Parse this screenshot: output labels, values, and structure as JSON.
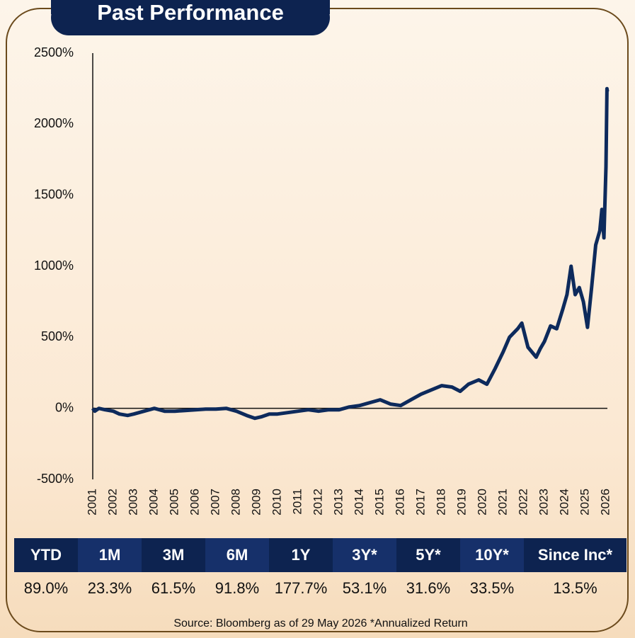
{
  "title": "Past Performance",
  "chart_data": {
    "type": "line",
    "x": [
      2001.0,
      2001.1,
      2001.3,
      2001.6,
      2002.0,
      2002.3,
      2002.7,
      2003.0,
      2003.5,
      2004.0,
      2004.5,
      2005.0,
      2005.5,
      2006.0,
      2006.5,
      2007.0,
      2007.5,
      2008.0,
      2008.5,
      2008.9,
      2009.2,
      2009.6,
      2010.0,
      2010.5,
      2011.0,
      2011.5,
      2012.0,
      2012.5,
      2013.0,
      2013.5,
      2014.0,
      2014.5,
      2015.0,
      2015.5,
      2016.0,
      2016.5,
      2017.0,
      2017.5,
      2018.0,
      2018.5,
      2018.9,
      2019.3,
      2019.8,
      2020.2,
      2020.6,
      2021.0,
      2021.3,
      2021.7,
      2021.9,
      2022.2,
      2022.6,
      2022.8,
      2023.0,
      2023.3,
      2023.6,
      2023.9,
      2024.1,
      2024.3,
      2024.5,
      2024.7,
      2024.9,
      2025.1,
      2025.3,
      2025.5,
      2025.7,
      2025.8,
      2025.9,
      2026.0,
      2026.05,
      2026.07
    ],
    "values": [
      0,
      -20,
      0,
      -10,
      -20,
      -40,
      -50,
      -40,
      -20,
      0,
      -20,
      -20,
      -15,
      -10,
      -5,
      -5,
      0,
      -20,
      -50,
      -70,
      -60,
      -40,
      -40,
      -30,
      -20,
      -10,
      -20,
      -10,
      -10,
      10,
      20,
      40,
      60,
      30,
      20,
      60,
      100,
      130,
      160,
      150,
      120,
      170,
      200,
      170,
      280,
      400,
      500,
      560,
      600,
      430,
      360,
      420,
      470,
      580,
      560,
      700,
      800,
      1000,
      800,
      850,
      750,
      570,
      850,
      1150,
      1250,
      1400,
      1200,
      1700,
      2250,
      2230
    ],
    "color": "#0d2a5c",
    "xlim": [
      2001,
      2026.07
    ],
    "xticks": [
      2001,
      2002,
      2003,
      2004,
      2005,
      2006,
      2007,
      2008,
      2009,
      2010,
      2011,
      2012,
      2013,
      2014,
      2015,
      2016,
      2017,
      2018,
      2019,
      2020,
      2021,
      2022,
      2023,
      2024,
      2025,
      2026
    ],
    "ylim": [
      -500,
      2500
    ],
    "yticks": [
      {
        "value": -500,
        "label": "-500%"
      },
      {
        "value": 0,
        "label": "0%"
      },
      {
        "value": 500,
        "label": "500%"
      },
      {
        "value": 1000,
        "label": "1000%"
      },
      {
        "value": 1500,
        "label": "1500%"
      },
      {
        "value": 2000,
        "label": "2000%"
      },
      {
        "value": 2500,
        "label": "2500%"
      }
    ]
  },
  "table": {
    "header": [
      "YTD",
      "1M",
      "3M",
      "6M",
      "1Y",
      "3Y*",
      "5Y*",
      "10Y*",
      "Since Inc*"
    ],
    "rows": [
      [
        "89.0%",
        "23.3%",
        "61.5%",
        "91.8%",
        "177.7%",
        "53.1%",
        "31.6%",
        "33.5%",
        "13.5%"
      ]
    ]
  },
  "source": "Source: Bloomberg as of 29 May 2026 *Annualized Return"
}
